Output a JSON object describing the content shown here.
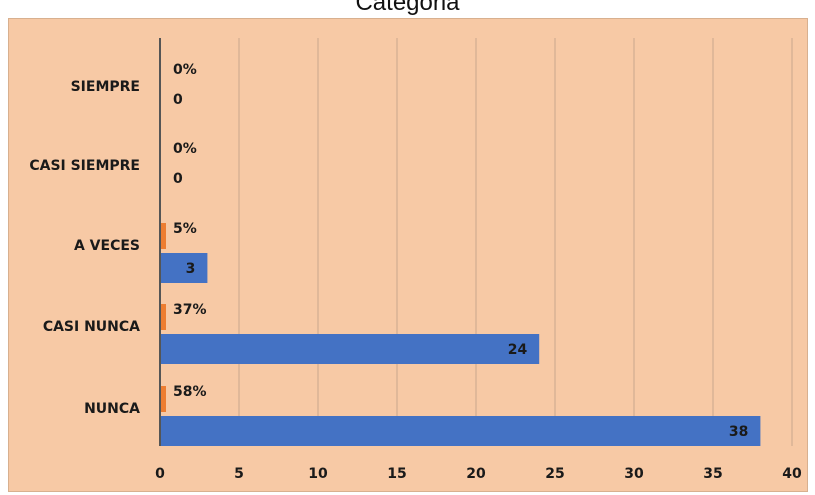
{
  "chart_data": {
    "type": "bar",
    "orientation": "horizontal",
    "title": "Categoria",
    "categories": [
      "SIEMPRE",
      "CASI SIEMPRE",
      "A VECES",
      "CASI NUNCA",
      "NUNCA"
    ],
    "series": [
      {
        "values": [
          0,
          0,
          3,
          24,
          38
        ],
        "color": "#4472c4"
      },
      {
        "values": [
          0,
          0,
          0.05,
          0.37,
          0.58
        ],
        "labels": [
          "0%",
          "0%",
          "5%",
          "37%",
          "58%"
        ],
        "color": "#ed7d31"
      }
    ],
    "xticks": [
      "0",
      "5",
      "10",
      "15",
      "20",
      "25",
      "30",
      "35",
      "40"
    ],
    "xlim": [
      0,
      40
    ],
    "grid": true,
    "legend": "none",
    "background": "#f7c9a5",
    "gridline_color": "#c9a88d"
  }
}
